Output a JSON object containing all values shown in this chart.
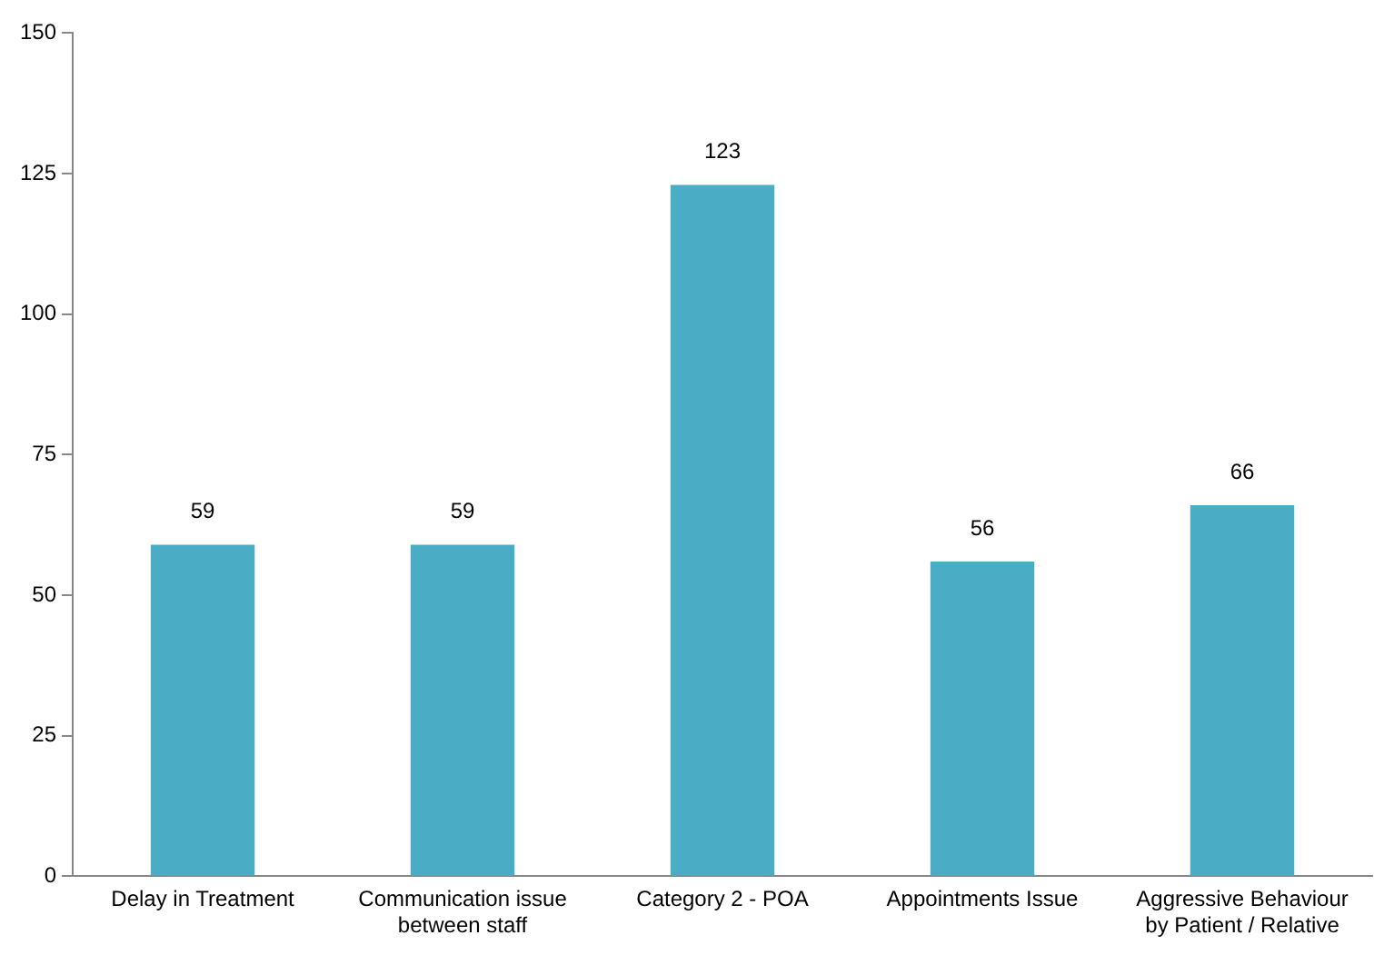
{
  "chart_data": {
    "type": "bar",
    "categories": [
      "Delay in Treatment",
      "Communication issue\nbetween staff",
      "Category 2 - POA",
      "Appointments Issue",
      "Aggressive Behaviour\nby Patient / Relative"
    ],
    "values": [
      59,
      59,
      123,
      56,
      66
    ],
    "color": "#4bacc6",
    "ylim": [
      0,
      150
    ],
    "yticks": [
      0,
      25,
      50,
      75,
      100,
      125,
      150
    ],
    "grid": false,
    "legend": false,
    "data_labels": true
  }
}
